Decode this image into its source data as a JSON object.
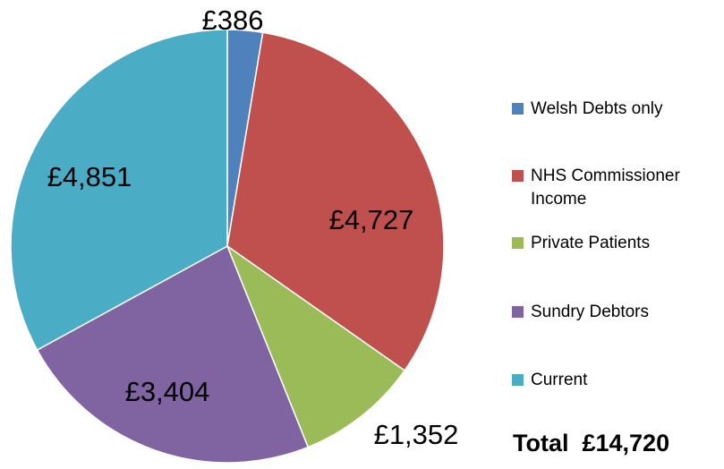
{
  "chart_data": {
    "type": "pie",
    "categories": [
      "Welsh Debts only",
      "NHS Commissioner Income",
      "Private Patients",
      "Sundry Debtors",
      "Current"
    ],
    "values": [
      386,
      4727,
      1352,
      3404,
      4851
    ],
    "value_labels": [
      "£386",
      "£4,727",
      "£1,352",
      "£3,404",
      "£4,851"
    ],
    "colors": [
      "#4f81bd",
      "#c0504d",
      "#9bbb59",
      "#8064a2",
      "#4bacc6"
    ],
    "legend": "right",
    "annotation": "Total  £14,720"
  }
}
